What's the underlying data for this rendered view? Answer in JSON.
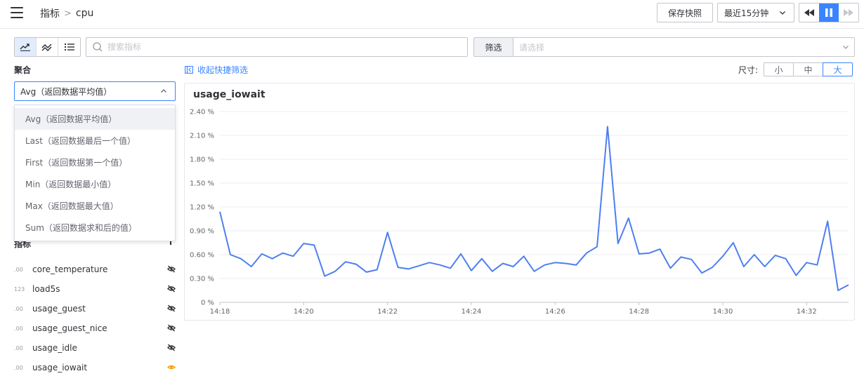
{
  "header": {
    "breadcrumb": [
      "指标",
      "cpu"
    ],
    "snapshot_button": "保存快照",
    "time_range": "最近15分钟"
  },
  "toolbar": {
    "search_placeholder": "搜索指标",
    "filter_label": "筛选",
    "filter_placeholder": "请选择"
  },
  "aggregation": {
    "label": "聚合",
    "selected": "Avg（返回数据平均值）",
    "options": [
      "Avg（返回数据平均值）",
      "Last（返回数据最后一个值）",
      "First（返回数据第一个值）",
      "Min（返回数据最小值）",
      "Max（返回数据最大值）",
      "Sum（返回数据求和后的值）"
    ]
  },
  "metrics": {
    "header": "指标",
    "items": [
      {
        "type": ".00",
        "name": "core_temperature",
        "visible": false
      },
      {
        "type": "123",
        "name": "load5s",
        "visible": false
      },
      {
        "type": ".00",
        "name": "usage_guest",
        "visible": false
      },
      {
        "type": ".00",
        "name": "usage_guest_nice",
        "visible": false
      },
      {
        "type": ".00",
        "name": "usage_idle",
        "visible": false
      },
      {
        "type": ".00",
        "name": "usage_iowait",
        "visible": true
      }
    ]
  },
  "panel": {
    "collapse_label": "收起快捷筛选",
    "size_label": "尺寸:",
    "sizes": [
      "小",
      "中",
      "大"
    ],
    "selected_size": "大"
  },
  "colors": {
    "accent": "#3a84ff",
    "line": "#4e7ff0",
    "eye_active": "#ff9c01"
  },
  "chart_data": {
    "type": "line",
    "title": "usage_iowait",
    "y_ticks": [
      "0 %",
      "0.30 %",
      "0.60 %",
      "0.90 %",
      "1.20 %",
      "1.50 %",
      "1.80 %",
      "2.10 %",
      "2.40 %"
    ],
    "ylim": [
      0,
      2.4
    ],
    "x_ticks": [
      "14:18",
      "14:20",
      "14:22",
      "14:24",
      "14:26",
      "14:28",
      "14:30",
      "14:32"
    ],
    "x_start": "14:18",
    "x_step_seconds": 15,
    "grid": true,
    "series": [
      {
        "values": [
          1.14,
          0.6,
          0.55,
          0.45,
          0.61,
          0.55,
          0.62,
          0.58,
          0.74,
          0.72,
          0.33,
          0.39,
          0.51,
          0.48,
          0.38,
          0.41,
          0.88,
          0.44,
          0.42,
          0.46,
          0.5,
          0.47,
          0.43,
          0.61,
          0.4,
          0.55,
          0.39,
          0.49,
          0.45,
          0.58,
          0.39,
          0.47,
          0.5,
          0.49,
          0.47,
          0.62,
          0.7,
          2.21,
          0.74,
          1.06,
          0.61,
          0.62,
          0.67,
          0.43,
          0.57,
          0.54,
          0.37,
          0.44,
          0.58,
          0.75,
          0.45,
          0.6,
          0.45,
          0.59,
          0.55,
          0.34,
          0.5,
          0.47,
          1.02,
          0.15,
          0.22
        ]
      }
    ]
  }
}
